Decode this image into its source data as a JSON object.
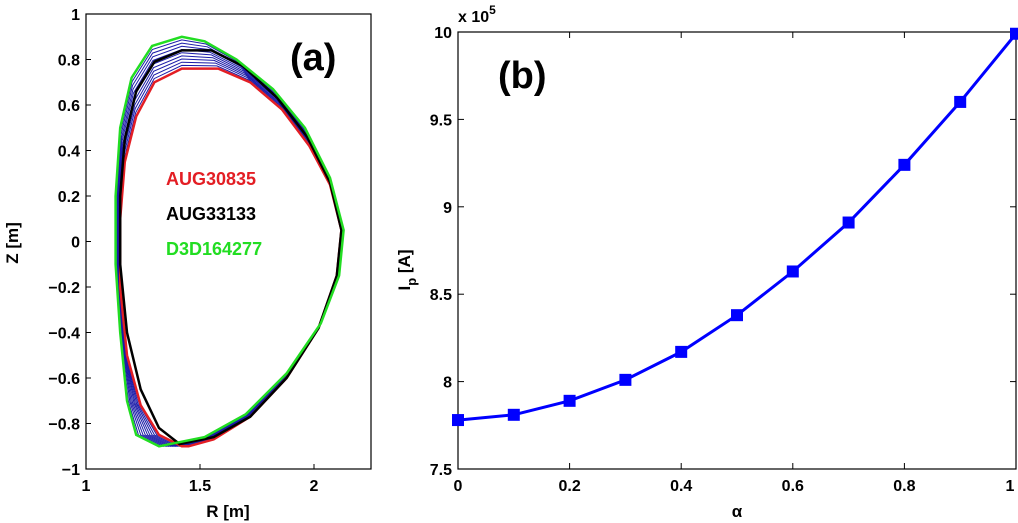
{
  "colors": {
    "aug30835": "#e31e24",
    "aug33133": "#000000",
    "d3d164277": "#22dd22",
    "intermediate": "#1a1aa8",
    "ip_line": "#0000ff"
  },
  "chart_data": [
    {
      "type": "line",
      "panel": "(a)",
      "xlabel": "R [m]",
      "ylabel": "Z [m]",
      "xlim": [
        1,
        2.25
      ],
      "ylim": [
        -1,
        1
      ],
      "xticks": [
        "1",
        "1.5",
        "2"
      ],
      "yticks": [
        "−1",
        "−0.8",
        "−0.6",
        "−0.4",
        "−0.2",
        "0",
        "0.2",
        "0.4",
        "0.6",
        "0.8",
        "1"
      ],
      "legend_placement": "center",
      "series": [
        {
          "name": "AUG30835",
          "color": "#e31e24",
          "points": [
            [
              1.42,
              -0.9
            ],
            [
              1.32,
              -0.85
            ],
            [
              1.24,
              -0.72
            ],
            [
              1.18,
              -0.5
            ],
            [
              1.15,
              -0.2
            ],
            [
              1.15,
              0.1
            ],
            [
              1.17,
              0.35
            ],
            [
              1.22,
              0.55
            ],
            [
              1.3,
              0.7
            ],
            [
              1.42,
              0.76
            ],
            [
              1.58,
              0.76
            ],
            [
              1.72,
              0.7
            ],
            [
              1.86,
              0.58
            ],
            [
              1.98,
              0.42
            ],
            [
              2.07,
              0.25
            ],
            [
              2.12,
              0.05
            ],
            [
              2.1,
              -0.15
            ],
            [
              2.02,
              -0.38
            ],
            [
              1.88,
              -0.6
            ],
            [
              1.72,
              -0.77
            ],
            [
              1.56,
              -0.87
            ],
            [
              1.45,
              -0.9
            ],
            [
              1.42,
              -0.9
            ]
          ]
        },
        {
          "name": "AUG33133",
          "color": "#000000",
          "points": [
            [
              1.41,
              -0.89
            ],
            [
              1.32,
              -0.82
            ],
            [
              1.24,
              -0.65
            ],
            [
              1.18,
              -0.4
            ],
            [
              1.15,
              -0.1
            ],
            [
              1.15,
              0.2
            ],
            [
              1.17,
              0.45
            ],
            [
              1.22,
              0.66
            ],
            [
              1.3,
              0.79
            ],
            [
              1.42,
              0.84
            ],
            [
              1.55,
              0.84
            ],
            [
              1.69,
              0.77
            ],
            [
              1.84,
              0.63
            ],
            [
              1.97,
              0.46
            ],
            [
              2.07,
              0.26
            ],
            [
              2.12,
              0.05
            ],
            [
              2.1,
              -0.15
            ],
            [
              2.02,
              -0.38
            ],
            [
              1.88,
              -0.6
            ],
            [
              1.72,
              -0.77
            ],
            [
              1.56,
              -0.86
            ],
            [
              1.41,
              -0.89
            ]
          ]
        },
        {
          "name": "D3D164277",
          "color": "#22dd22",
          "points": [
            [
              1.32,
              -0.9
            ],
            [
              1.22,
              -0.85
            ],
            [
              1.18,
              -0.7
            ],
            [
              1.15,
              -0.4
            ],
            [
              1.13,
              -0.1
            ],
            [
              1.13,
              0.2
            ],
            [
              1.15,
              0.5
            ],
            [
              1.2,
              0.72
            ],
            [
              1.29,
              0.86
            ],
            [
              1.42,
              0.9
            ],
            [
              1.52,
              0.88
            ],
            [
              1.66,
              0.8
            ],
            [
              1.82,
              0.67
            ],
            [
              1.96,
              0.5
            ],
            [
              2.07,
              0.28
            ],
            [
              2.13,
              0.05
            ],
            [
              2.11,
              -0.15
            ],
            [
              2.03,
              -0.36
            ],
            [
              1.88,
              -0.58
            ],
            [
              1.7,
              -0.76
            ],
            [
              1.52,
              -0.86
            ],
            [
              1.42,
              -0.88
            ],
            [
              1.32,
              -0.9
            ]
          ]
        }
      ]
    },
    {
      "type": "line",
      "panel": "(b)",
      "xlabel": "α",
      "ylabel_main": "I",
      "ylabel_sub": "p",
      "ylabel_unit": " [A]",
      "xlim": [
        0,
        1
      ],
      "ylim": [
        7.5,
        10
      ],
      "y_exponent_label": "x 10",
      "y_exponent_power": "5",
      "xticks": [
        "0",
        "0.2",
        "0.4",
        "0.6",
        "0.8",
        "1"
      ],
      "yticks": [
        "7.5",
        "8",
        "8.5",
        "9",
        "9.5",
        "10"
      ],
      "marker": "square",
      "series": [
        {
          "color": "#0000ff",
          "x": [
            0,
            0.1,
            0.2,
            0.3,
            0.4,
            0.5,
            0.6,
            0.7,
            0.8,
            0.9,
            1.0
          ],
          "y": [
            7.78,
            7.81,
            7.89,
            8.01,
            8.17,
            8.38,
            8.63,
            8.91,
            9.24,
            9.6,
            9.99
          ]
        }
      ]
    }
  ]
}
